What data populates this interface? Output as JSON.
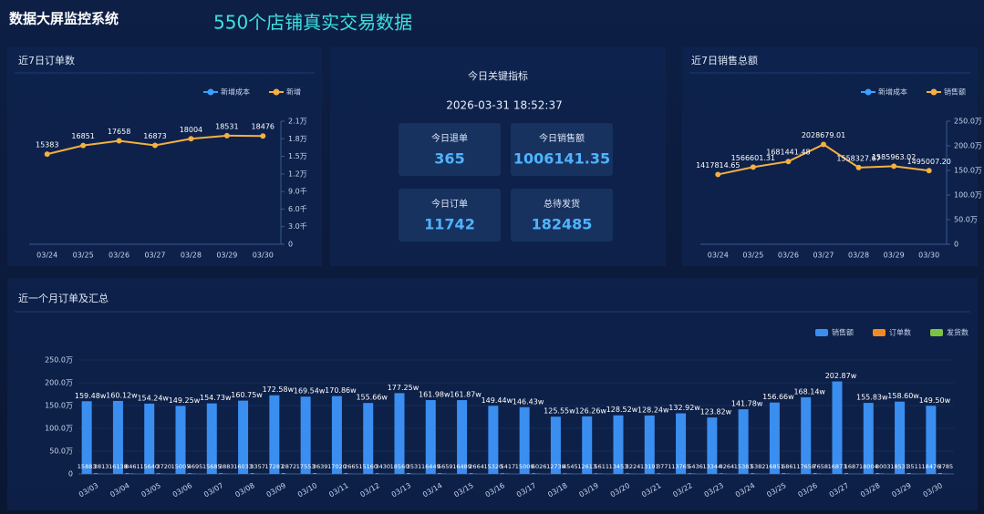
{
  "header": {
    "title": "数据大屏监控系统",
    "subtitle": "550个店铺真实交易数据"
  },
  "kpi_panel": {
    "title": "今日关键指标",
    "datetime": "2026-03-31 18:52:37",
    "items": [
      {
        "label": "今日退单",
        "value": "365"
      },
      {
        "label": "今日销售额",
        "value": "1006141.35"
      },
      {
        "label": "今日订单",
        "value": "11742"
      },
      {
        "label": "总待发货",
        "value": "182485"
      }
    ]
  },
  "chart_data": [
    {
      "type": "line",
      "title": "近7日订单数",
      "legend": "top-right",
      "grid": false,
      "categories": [
        "03/24",
        "03/25",
        "03/26",
        "03/27",
        "03/28",
        "03/29",
        "03/30"
      ],
      "series": [
        {
          "name": "新增成本",
          "color": "#3ba0ff",
          "values": [
            null,
            null,
            null,
            null,
            null,
            null,
            null
          ]
        },
        {
          "name": "新增",
          "color": "#f5b041",
          "values": [
            15383,
            16851,
            17658,
            16873,
            18004,
            18531,
            18476
          ]
        }
      ],
      "ylim": [
        0,
        21000
      ],
      "yticks": [
        0,
        {
          "value": 3000,
          "label": "3.0千"
        },
        {
          "value": 6000,
          "label": "6.0千"
        },
        {
          "value": 9000,
          "label": "9.0千"
        },
        {
          "value": 12000,
          "label": "1.2万"
        },
        {
          "value": 15000,
          "label": "1.5万"
        },
        {
          "value": 18000,
          "label": "1.8万"
        },
        {
          "value": 21000,
          "label": "2.1万"
        }
      ]
    },
    {
      "type": "line",
      "title": "近7日销售总额",
      "legend": "top-right",
      "grid": false,
      "categories": [
        "03/24",
        "03/25",
        "03/26",
        "03/27",
        "03/28",
        "03/29",
        "03/30"
      ],
      "series": [
        {
          "name": "新增成本",
          "color": "#3ba0ff",
          "values": [
            null,
            null,
            null,
            null,
            null,
            null,
            null
          ]
        },
        {
          "name": "销售额",
          "color": "#f5b041",
          "values": [
            1417814.65,
            1566601.31,
            1681441.48,
            2028679.01,
            1558327.67,
            1585963.02,
            1495007.2
          ],
          "value_labels": [
            "1417814.65",
            "1566601.31",
            "1681441.48",
            "2028679.01",
            "1558327.67",
            "1585963.02",
            "1495007.20"
          ]
        }
      ],
      "ylim": [
        0,
        2500000
      ],
      "yticks": [
        0,
        {
          "value": 500000,
          "label": "50.0万"
        },
        {
          "value": 1000000,
          "label": "100.0万"
        },
        {
          "value": 1500000,
          "label": "150.0万"
        },
        {
          "value": 2000000,
          "label": "200.0万"
        },
        {
          "value": 2500000,
          "label": "250.0万"
        }
      ]
    },
    {
      "type": "bar",
      "title": "近一个月订单及汇总",
      "legend": "top-right",
      "grid": true,
      "categories": [
        "03/03",
        "03/04",
        "03/05",
        "03/06",
        "03/07",
        "03/08",
        "03/09",
        "03/10",
        "03/11",
        "03/12",
        "03/13",
        "03/14",
        "03/15",
        "03/16",
        "03/17",
        "03/18",
        "03/19",
        "03/20",
        "03/21",
        "03/22",
        "03/23",
        "03/24",
        "03/25",
        "03/26",
        "03/27",
        "03/28",
        "03/29",
        "03/30"
      ],
      "series": [
        {
          "name": "销售额",
          "color": "#3a8ef0",
          "values": [
            1594800,
            1601200,
            1542400,
            1492500,
            1547300,
            1607500,
            1725800,
            1695400,
            1708600,
            1556600,
            1772500,
            1619800,
            1618700,
            1494400,
            1464300,
            1255500,
            1262600,
            1285200,
            1282400,
            1329200,
            1238200,
            1417800,
            1566600,
            1681400,
            2028700,
            1558300,
            1586000,
            1495000
          ],
          "value_labels": [
            "159.48w",
            "160.12w",
            "154.24w",
            "149.25w",
            "154.73w",
            "160.75w",
            "172.58w",
            "169.54w",
            "170.86w",
            "155.66w",
            "177.25w",
            "161.98w",
            "161.87w",
            "149.44w",
            "146.43w",
            "125.55w",
            "126.26w",
            "128.52w",
            "128.24w",
            "132.92w",
            "123.82w",
            "141.78w",
            "156.66w",
            "168.14w",
            "202.87w",
            "155.83w",
            "158.60w",
            "149.50w"
          ]
        },
        {
          "name": "订单数",
          "color": "#f08a24",
          "values": [
            15883,
            16138,
            15640,
            15005,
            15685,
            16033,
            17287,
            17553,
            17020,
            15160,
            18560,
            16449,
            16489,
            15320,
            15000,
            12738,
            12613,
            13453,
            13191,
            13765,
            13344,
            15383,
            16851,
            17658,
            16873,
            18004,
            18531,
            18476
          ]
        },
        {
          "name": "发货数",
          "color": "#7cc242",
          "values": [
            3813,
            8461,
            3720,
            4695,
            3883,
            3357,
            2872,
            3639,
            2665,
            3430,
            3531,
            5659,
            2664,
            5417,
            6026,
            4545,
            5611,
            3224,
            3771,
            5436,
            4264,
            5382,
            6861,
            7658,
            1687,
            8003,
            3511,
            3785
          ]
        }
      ],
      "ylim": [
        0,
        2500000
      ],
      "yticks": [
        0,
        {
          "value": 500000,
          "label": "50.0万"
        },
        {
          "value": 1000000,
          "label": "100.0万"
        },
        {
          "value": 1500000,
          "label": "150.0万"
        },
        {
          "value": 2000000,
          "label": "200.0万"
        },
        {
          "value": 2500000,
          "label": "250.0万"
        }
      ]
    }
  ]
}
